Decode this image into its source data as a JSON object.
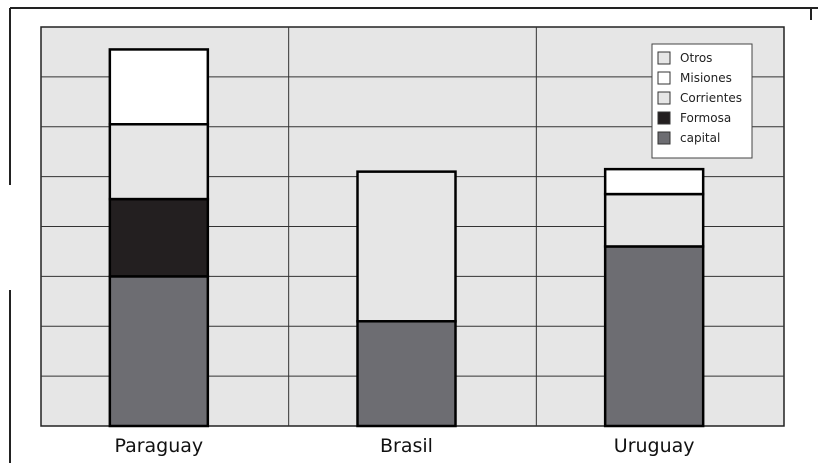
{
  "chart_data": {
    "type": "bar",
    "stacked": true,
    "categories": [
      "Paraguay",
      "Brasil",
      "Uruguay"
    ],
    "ylim": [
      0,
      8
    ],
    "grid": true,
    "legend_position": "top-right",
    "series": [
      {
        "name": "capital",
        "color": "#6d6d72",
        "values": [
          3.0,
          2.1,
          3.6
        ]
      },
      {
        "name": "Formosa",
        "color": "#231f20",
        "values": [
          1.55,
          0,
          0
        ]
      },
      {
        "name": "Corrientes",
        "color": "#e6e6e6",
        "values": [
          1.5,
          3.0,
          1.05
        ]
      },
      {
        "name": "Misiones",
        "color": "#ffffff",
        "values": [
          1.5,
          0,
          0.5
        ]
      },
      {
        "name": "Otros",
        "color": "#e6e6e6",
        "values": [
          0,
          0,
          0
        ]
      }
    ],
    "legend_order": [
      "Otros",
      "Misiones",
      "Corrientes",
      "Formosa",
      "capital"
    ]
  },
  "colors": {
    "plot_background": "#e6e6e6",
    "grid_line": "#333333",
    "bar_outline": "#000000"
  }
}
